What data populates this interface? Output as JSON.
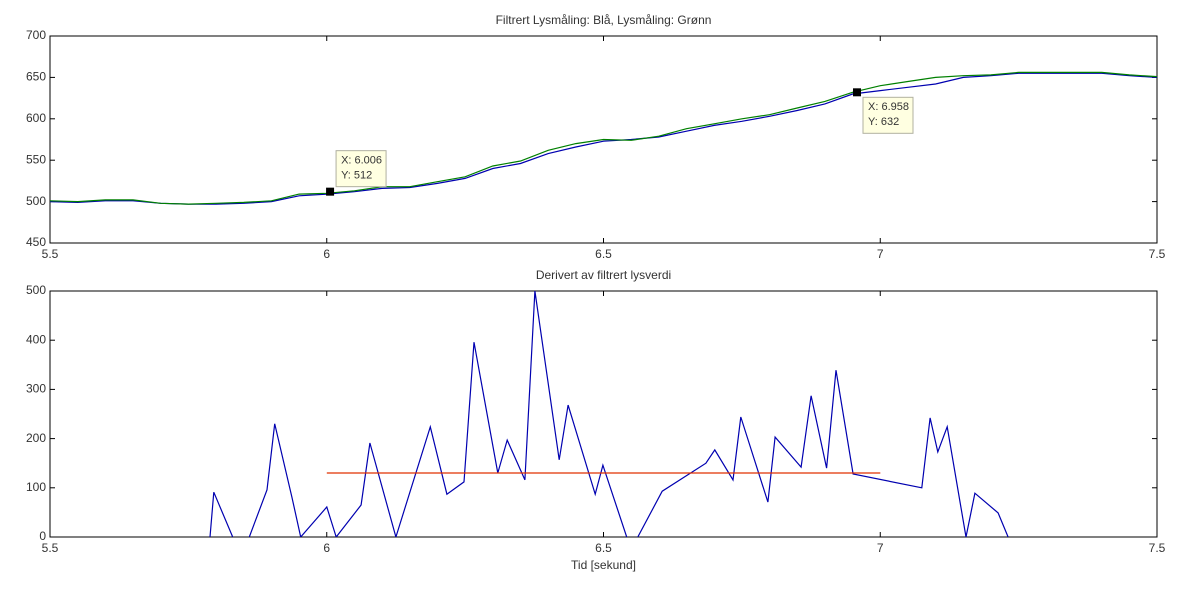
{
  "chart_data": [
    {
      "type": "line",
      "title": "Filtrert Lysmåling: Blå, Lysmåling: Grønn",
      "xlim": [
        5.5,
        7.5
      ],
      "xticks": [
        5.5,
        6,
        6.5,
        7,
        7.5
      ],
      "ylim": [
        450,
        700
      ],
      "yticks": [
        450,
        500,
        550,
        600,
        650,
        700
      ],
      "series": [
        {
          "color": "#0000b0",
          "x": [
            5.5,
            5.55,
            5.6,
            5.65,
            5.7,
            5.75,
            5.8,
            5.85,
            5.9,
            5.95,
            6.0,
            6.05,
            6.1,
            6.15,
            6.2,
            6.25,
            6.3,
            6.35,
            6.4,
            6.45,
            6.5,
            6.55,
            6.6,
            6.65,
            6.7,
            6.75,
            6.8,
            6.85,
            6.9,
            6.95,
            7.0,
            7.05,
            7.1,
            7.15,
            7.2,
            7.25,
            7.3,
            7.35,
            7.4,
            7.45,
            7.5
          ],
          "values": [
            500,
            499,
            501,
            501,
            498,
            497,
            497,
            498,
            500,
            507,
            509,
            512,
            516,
            517,
            522,
            528,
            540,
            546,
            558,
            566,
            573,
            575,
            578,
            585,
            592,
            597,
            603,
            610,
            618,
            630,
            634,
            638,
            642,
            650,
            652,
            655,
            655,
            655,
            655,
            652,
            650
          ]
        },
        {
          "color": "#008000",
          "x": [
            5.5,
            5.55,
            5.6,
            5.65,
            5.7,
            5.75,
            5.8,
            5.85,
            5.9,
            5.95,
            6.0,
            6.05,
            6.1,
            6.15,
            6.2,
            6.25,
            6.3,
            6.35,
            6.4,
            6.45,
            6.5,
            6.55,
            6.6,
            6.65,
            6.7,
            6.75,
            6.8,
            6.85,
            6.9,
            6.95,
            7.0,
            7.05,
            7.1,
            7.15,
            7.2,
            7.25,
            7.3,
            7.35,
            7.4,
            7.45,
            7.5
          ],
          "values": [
            501,
            500,
            502,
            502,
            498,
            497,
            498,
            499,
            501,
            509,
            510,
            513,
            518,
            518,
            524,
            530,
            543,
            549,
            562,
            570,
            575,
            574,
            579,
            588,
            594,
            600,
            605,
            613,
            621,
            632,
            640,
            645,
            650,
            652,
            653,
            656,
            656,
            656,
            656,
            653,
            651
          ]
        }
      ],
      "annotations": [
        {
          "x": 6.006,
          "y": 512,
          "lines": [
            "X: 6.006",
            "Y: 512"
          ]
        },
        {
          "x": 6.958,
          "y": 632,
          "lines": [
            "X: 6.958",
            "Y: 632"
          ]
        }
      ]
    },
    {
      "type": "line",
      "title": "Derivert av filtrert lysverdi",
      "xlabel": "Tid [sekund]",
      "xlim": [
        5.5,
        7.5
      ],
      "xticks": [
        5.5,
        6,
        6.5,
        7,
        7.5
      ],
      "ylim": [
        0,
        500
      ],
      "yticks": [
        0,
        100,
        200,
        300,
        400,
        500
      ],
      "series": [
        {
          "color": "#0000b0",
          "x": [
            5.789,
            5.796,
            5.83,
            null,
            5.86,
            5.892,
            5.906,
            5.937,
            5.953,
            6.0,
            6.017,
            6.062,
            6.078,
            6.125,
            6.187,
            6.217,
            6.248,
            6.266,
            6.309,
            6.326,
            6.358,
            6.376,
            6.42,
            6.436,
            6.485,
            6.499,
            6.542,
            null,
            6.562,
            6.606,
            6.685,
            6.701,
            6.734,
            6.748,
            6.797,
            6.81,
            6.857,
            6.875,
            6.903,
            6.92,
            6.951,
            7.075,
            7.09,
            7.104,
            7.121,
            7.155,
            7.171,
            7.213,
            7.231
          ],
          "values": [
            0,
            91,
            0,
            null,
            0,
            96,
            230,
            81,
            0,
            61,
            0,
            65,
            191,
            0,
            224,
            87,
            112,
            396,
            130,
            197,
            116,
            500,
            157,
            268,
            87,
            146,
            0,
            null,
            0,
            93,
            150,
            177,
            116,
            244,
            71,
            203,
            142,
            287,
            140,
            339,
            128,
            100,
            242,
            173,
            224,
            0,
            89,
            49,
            0
          ]
        },
        {
          "color": "#e03000",
          "x": [
            6,
            7
          ],
          "values": [
            130,
            130
          ]
        }
      ]
    }
  ]
}
